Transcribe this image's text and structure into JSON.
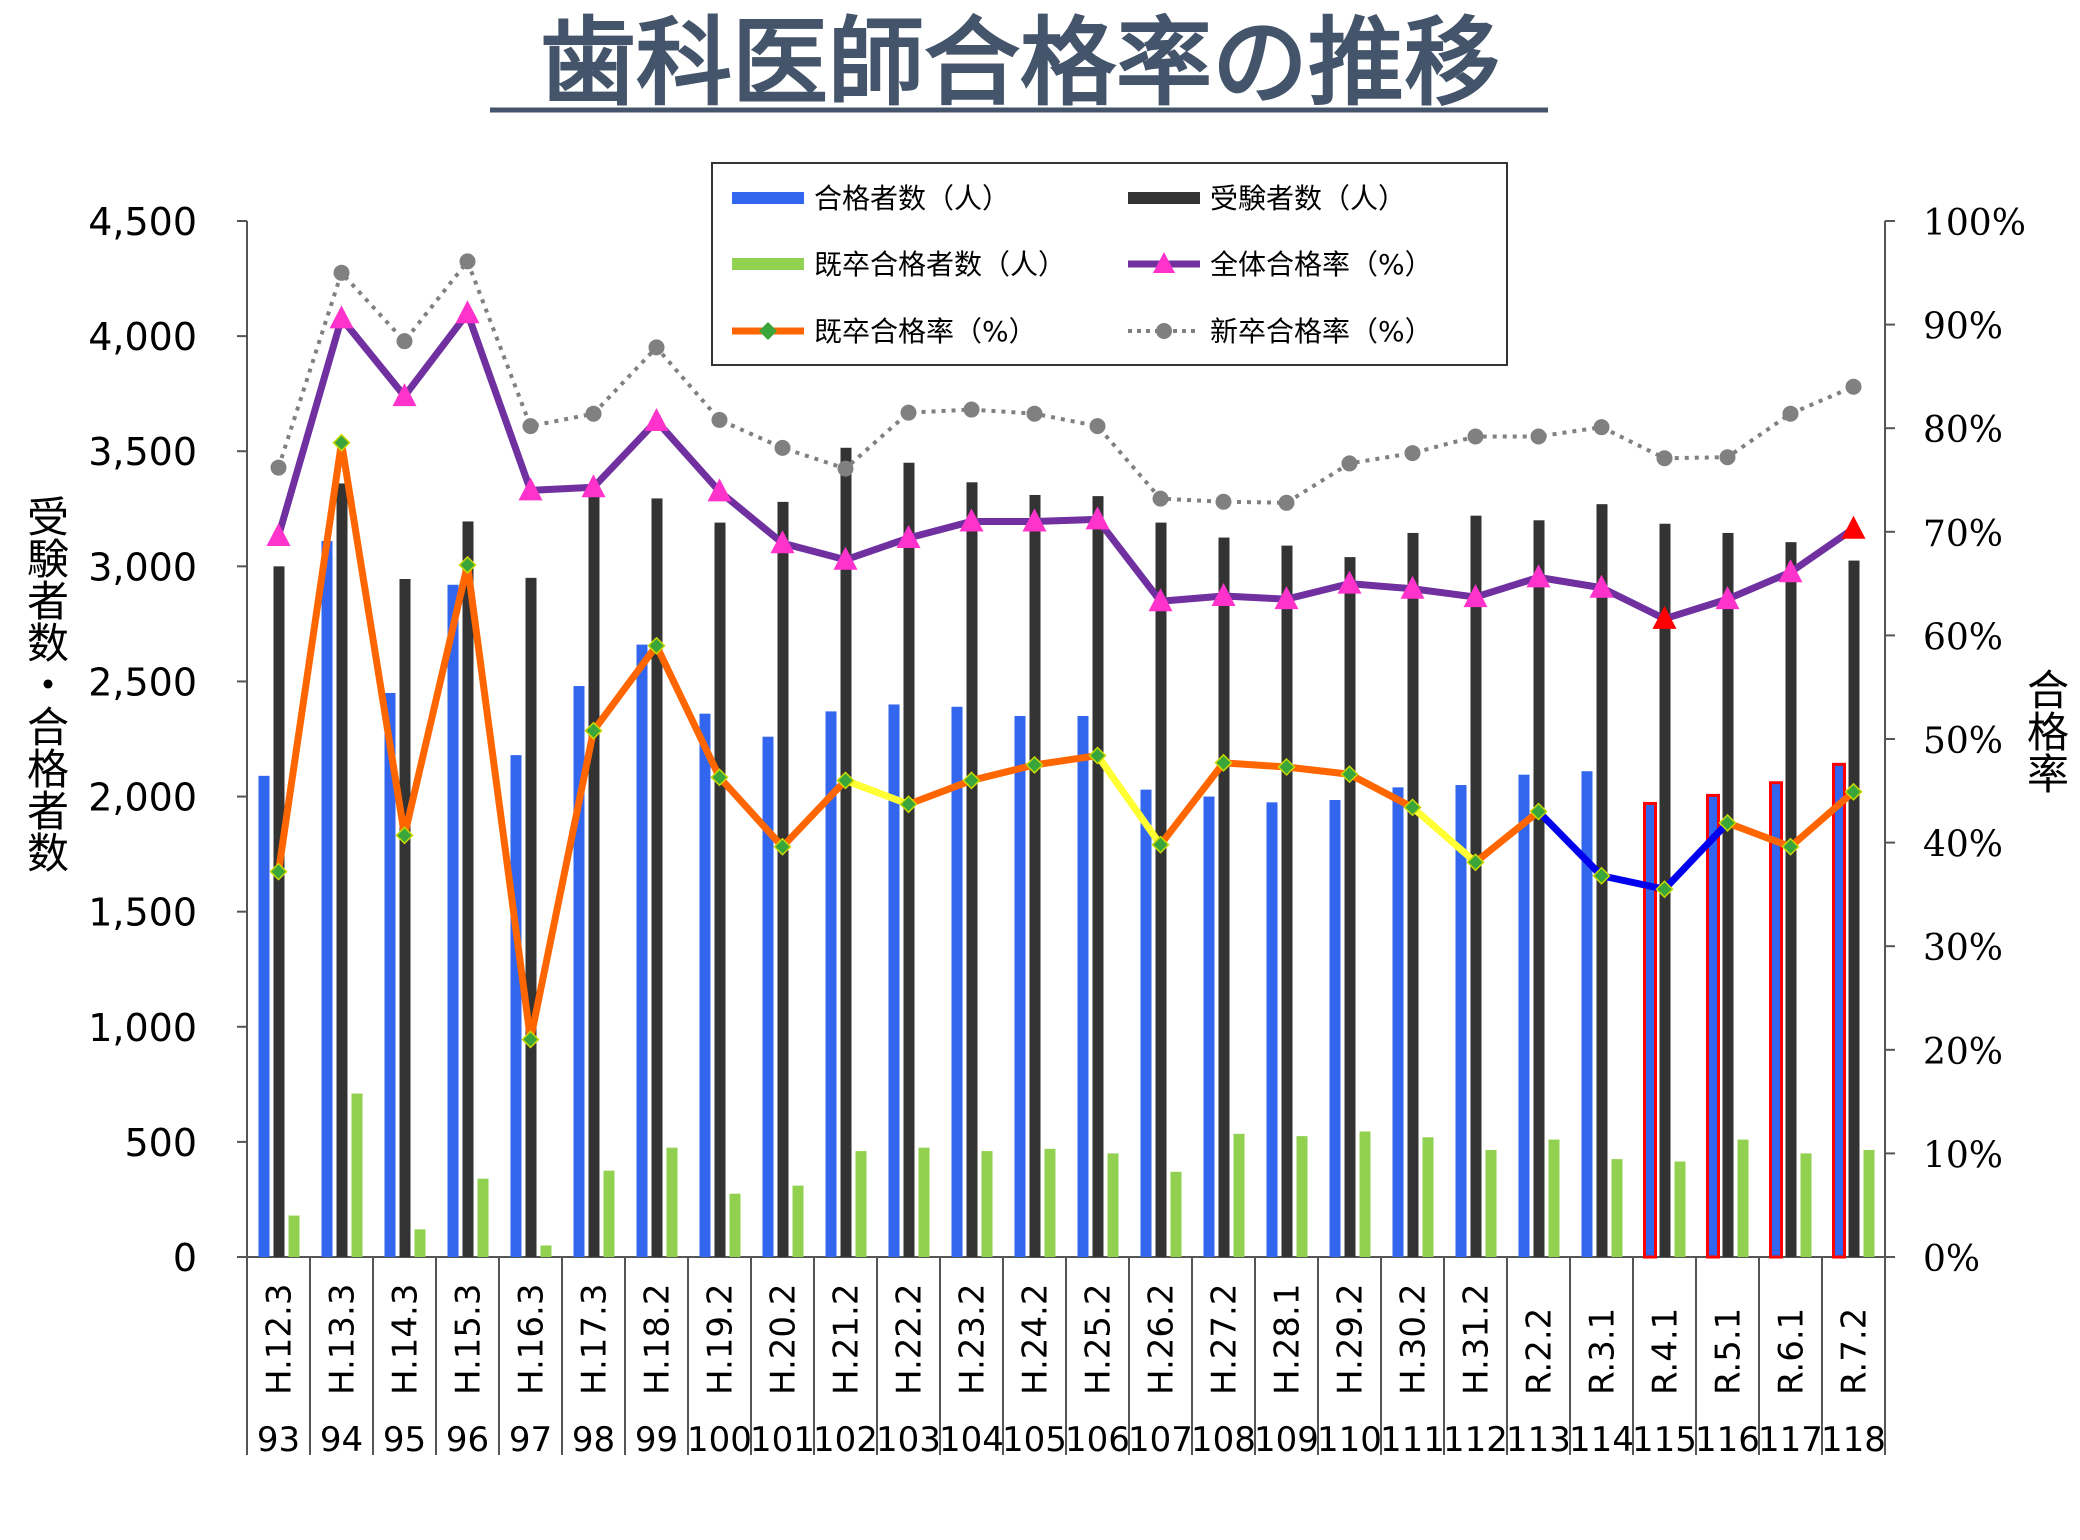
{
  "chart_data": {
    "type": "bar",
    "title": "歯科医師合格率の推移",
    "ylabel": "受験者数・合格者数",
    "y2label": "合格率",
    "ylim": [
      0,
      4500
    ],
    "y2lim": [
      0,
      100
    ],
    "yticks": [
      "0",
      "500",
      "1,000",
      "1,500",
      "2,000",
      "2,500",
      "3,000",
      "3,500",
      "4,000",
      "4,500"
    ],
    "y2ticks": [
      "0%",
      "10%",
      "20%",
      "30%",
      "40%",
      "50%",
      "60%",
      "70%",
      "80%",
      "90%",
      "100%"
    ],
    "categories": [
      "H.12.3",
      "H.13.3",
      "H.14.3",
      "H.15.3",
      "H.16.3",
      "H.17.3",
      "H.18.2",
      "H.19.2",
      "H.20.2",
      "H.21.2",
      "H.22.2",
      "H.23.2",
      "H.24.2",
      "H.25.2",
      "H.26.2",
      "H.27.2",
      "H.28.1",
      "H.29.2",
      "H.30.2",
      "H.31.2",
      "R.2.2",
      "R.3.1",
      "R.4.1",
      "R.5.1",
      "R.6.1",
      "R.7.2"
    ],
    "exam_numbers": [
      "93",
      "94",
      "95",
      "96",
      "97",
      "98",
      "99",
      "100",
      "101",
      "102",
      "103",
      "104",
      "105",
      "106",
      "107",
      "108",
      "109",
      "110",
      "111",
      "112",
      "113",
      "114",
      "115",
      "116",
      "117",
      "118"
    ],
    "legend": {
      "passers": "合格者数（人）",
      "examinees": "受験者数（人）",
      "repeat_passers": "既卒合格者数（人）",
      "overall_rate": "全体合格率（%）",
      "repeat_rate": "既卒合格率（%）",
      "new_rate": "新卒合格率（%）"
    },
    "series": [
      {
        "name": "合格者数（人）",
        "type": "bar",
        "color": "#3366ee",
        "values": [
          2090,
          3110,
          2450,
          2920,
          2180,
          2480,
          2660,
          2360,
          2260,
          2370,
          2400,
          2390,
          2350,
          2350,
          2030,
          2000,
          1975,
          1985,
          2040,
          2050,
          2095,
          2110,
          1970,
          2005,
          2060,
          2140
        ]
      },
      {
        "name": "受験者数（人）",
        "type": "bar",
        "color": "#333333",
        "values": [
          3000,
          3360,
          2945,
          3195,
          2950,
          3330,
          3295,
          3190,
          3280,
          3515,
          3450,
          3365,
          3310,
          3305,
          3190,
          3125,
          3090,
          3040,
          3145,
          3220,
          3200,
          3270,
          3185,
          3145,
          3105,
          3025
        ]
      },
      {
        "name": "既卒合格者数（人）",
        "type": "bar",
        "color": "#92d050",
        "values": [
          180,
          710,
          120,
          340,
          50,
          375,
          475,
          275,
          310,
          460,
          475,
          460,
          470,
          450,
          370,
          535,
          525,
          545,
          520,
          465,
          510,
          425,
          415,
          510,
          450,
          465
        ]
      },
      {
        "name": "全体合格率（%）",
        "type": "line",
        "color": "#7030a0",
        "values": [
          69.6,
          90.6,
          83.1,
          91.1,
          74.0,
          74.3,
          80.7,
          73.9,
          68.9,
          67.3,
          69.4,
          71.0,
          71.0,
          71.2,
          63.3,
          63.8,
          63.5,
          65.0,
          64.5,
          63.7,
          65.6,
          64.6,
          61.6,
          63.5,
          66.1,
          70.3
        ]
      },
      {
        "name": "既卒合格率（%）",
        "type": "line",
        "color": "#ff6600",
        "values": [
          37.2,
          78.6,
          40.7,
          66.8,
          21.0,
          50.8,
          59.0,
          46.3,
          39.6,
          46.0,
          43.7,
          46.0,
          47.5,
          48.4,
          39.8,
          47.7,
          47.3,
          46.6,
          43.4,
          38.1,
          43.0,
          36.8,
          35.5,
          41.9,
          39.6,
          44.9
        ]
      },
      {
        "name": "新卒合格率（%）",
        "type": "line",
        "color": "#808080",
        "values": [
          76.2,
          95.0,
          88.4,
          96.1,
          80.2,
          81.4,
          87.8,
          80.8,
          78.1,
          76.1,
          81.5,
          81.8,
          81.4,
          80.2,
          73.2,
          72.9,
          72.8,
          76.6,
          77.6,
          79.2,
          79.2,
          80.1,
          77.1,
          77.2,
          81.4,
          84.0
        ]
      }
    ],
    "highlights": {
      "repeat_rate_segment_colors": [
        "#ff6600",
        "#ff6600",
        "#ff6600",
        "#ff6600",
        "#ff6600",
        "#ff6600",
        "#ff6600",
        "#ff6600",
        "#ff6600",
        "#ffff33",
        "#ff6600",
        "#ff6600",
        "#ff6600",
        "#ffff33",
        "#ff6600",
        "#ff6600",
        "#ff6600",
        "#ff6600",
        "#ffff33",
        "#ff6600",
        "#0000ee",
        "#0000ee",
        "#0000ee",
        "#ff6600",
        "#ff6600"
      ],
      "overall_rate_red_markers": [
        22,
        25
      ],
      "passers_red_outline": [
        22,
        23,
        24,
        25
      ],
      "red_outline_color": "#ff0000",
      "marker_colors": {
        "overall": "#ff33cc",
        "repeat": "#3aa53a",
        "new": "#808080"
      }
    }
  }
}
